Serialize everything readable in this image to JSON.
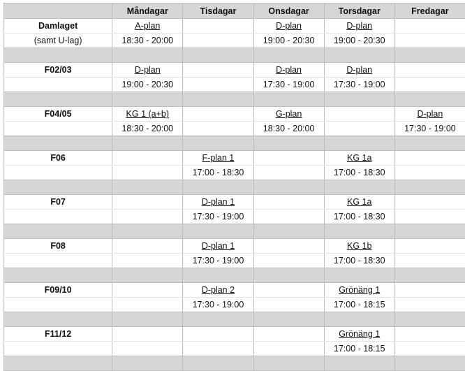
{
  "header": {
    "days": [
      "Måndagar",
      "Tisdagar",
      "Onsdagar",
      "Torsdagar",
      "Fredagar"
    ]
  },
  "colors": {
    "header_bg": "#d6d6d6",
    "separator_bg": "#d6d6d6",
    "border": "#bdbdbd"
  },
  "groups": [
    {
      "team": "Damlaget",
      "subtitle": "(samt U-lag)",
      "slots": [
        {
          "place": "A-plan",
          "time": "18:30 - 20:00"
        },
        null,
        {
          "place": "D-plan",
          "time": "19:00 - 20:30"
        },
        {
          "place": "D-plan",
          "time": "19:00 - 20:30"
        },
        null
      ]
    },
    {
      "team": "F02/03",
      "slots": [
        {
          "place": "D-plan",
          "time": "19:00 - 20:30"
        },
        null,
        {
          "place": "D-plan",
          "time": "17:30 - 19:00"
        },
        {
          "place": "D-plan",
          "time": "17:30 - 19:00"
        },
        null
      ]
    },
    {
      "team": "F04/05",
      "slots": [
        {
          "place": "KG 1 (a+b)",
          "time": "18:30 - 20:00"
        },
        null,
        {
          "place": "G-plan",
          "time": "18:30 - 20:00"
        },
        null,
        {
          "place": "D-plan",
          "time": "17:30 - 19:00"
        }
      ]
    },
    {
      "team": "F06",
      "slots": [
        null,
        {
          "place": "F-plan 1",
          "time": "17:00 - 18:30"
        },
        null,
        {
          "place": "KG 1a",
          "time": "17:00 - 18:30"
        },
        null
      ]
    },
    {
      "team": "F07",
      "slots": [
        null,
        {
          "place": "D-plan 1",
          "time": "17:30 - 19:00"
        },
        null,
        {
          "place": "KG 1a",
          "time": "17:00 - 18:30"
        },
        null
      ]
    },
    {
      "team": "F08",
      "slots": [
        null,
        {
          "place": "D-plan 1",
          "time": "17:30 - 19:00"
        },
        null,
        {
          "place": "KG 1b",
          "time": "17:00 - 18:30"
        },
        null
      ]
    },
    {
      "team": "F09/10",
      "slots": [
        null,
        {
          "place": "D-plan 2",
          "time": "17:30 - 19:00"
        },
        null,
        {
          "place": "Grönäng 1",
          "time": "17:00 - 18:15"
        },
        null
      ]
    },
    {
      "team": "F11/12",
      "slots": [
        null,
        null,
        null,
        {
          "place": "Grönäng 1",
          "time": "17:00 - 18:15"
        },
        null
      ]
    }
  ]
}
